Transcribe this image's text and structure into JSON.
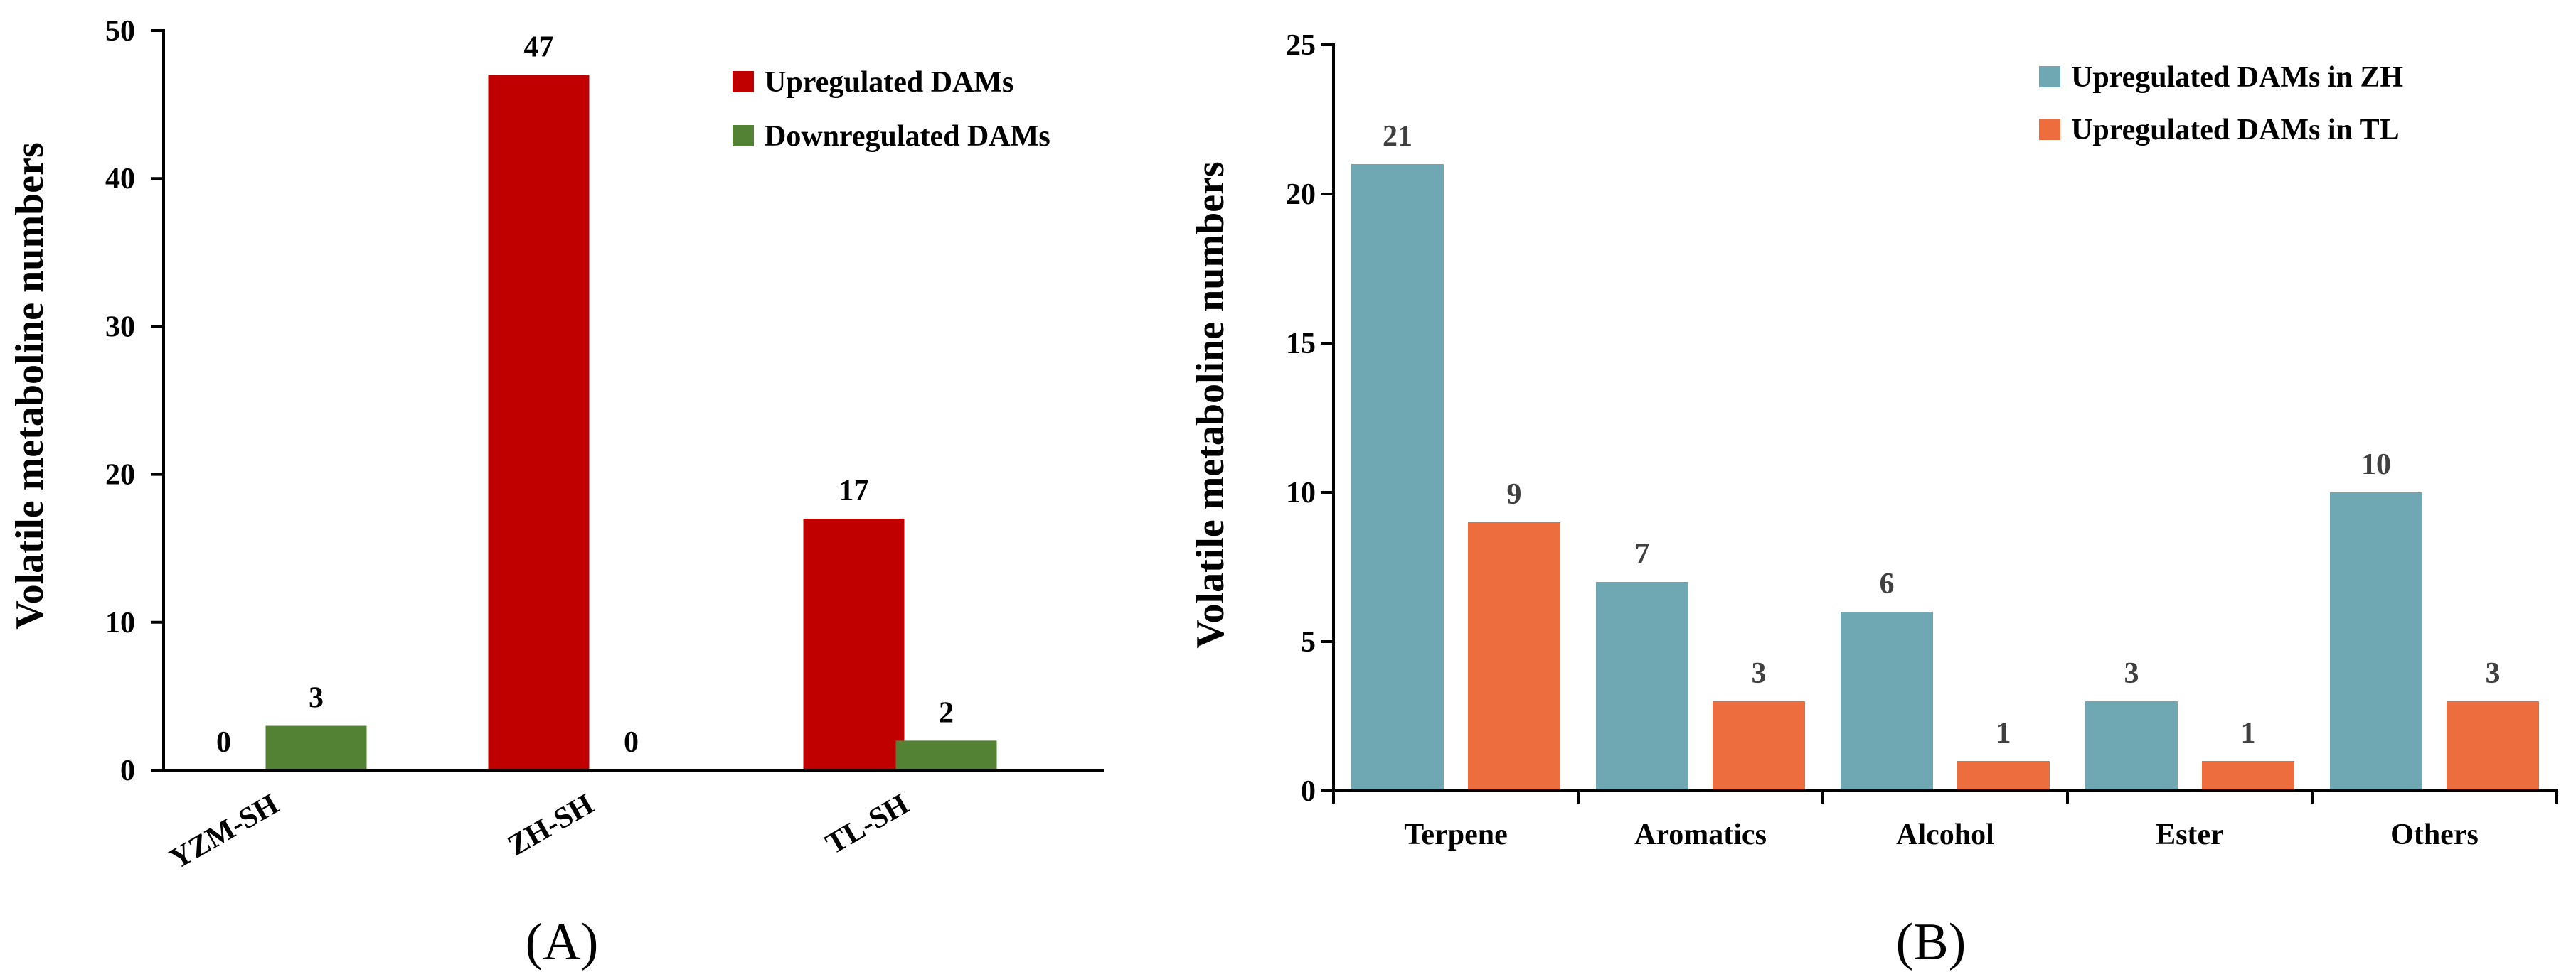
{
  "chart_data": [
    {
      "type": "bar",
      "panel_label": "(A)",
      "categories": [
        "YZM-SH",
        "ZH-SH",
        "TL-SH"
      ],
      "series": [
        {
          "name": "Upregulated DAMs",
          "color": "#c00000",
          "values": [
            0,
            47,
            17
          ],
          "labels": [
            "0",
            "47",
            "17"
          ]
        },
        {
          "name": "Downregulated DAMs",
          "color": "#548235",
          "values": [
            3,
            0,
            2
          ],
          "labels": [
            "3",
            "0",
            "2"
          ]
        }
      ],
      "title": "",
      "xlabel": "",
      "ylabel": "Volatile metaboline numbers",
      "ylim": [
        0,
        50
      ],
      "yticks": [
        0,
        10,
        20,
        30,
        40,
        50
      ],
      "ytick_labels": [
        "0",
        "10",
        "20",
        "30",
        "40",
        "50"
      ],
      "grid": false,
      "legend_position": "top-right",
      "label_color": "#000000",
      "xtick_rotation": -30
    },
    {
      "type": "bar",
      "panel_label": "(B)",
      "categories": [
        "Terpene",
        "Aromatics",
        "Alcohol",
        "Ester",
        "Others"
      ],
      "series": [
        {
          "name": "Upregulated DAMs in ZH",
          "color": "#6fa8b3",
          "values": [
            21,
            7,
            6,
            3,
            10
          ],
          "labels": [
            "21",
            "7",
            "6",
            "3",
            "10"
          ]
        },
        {
          "name": "Upregulated DAMs in TL",
          "color": "#ed6d3f",
          "values": [
            9,
            3,
            1,
            1,
            3
          ],
          "labels": [
            "9",
            "3",
            "1",
            "1",
            "3"
          ]
        }
      ],
      "title": "",
      "xlabel": "",
      "ylabel": "Volatile metaboline numbers",
      "ylim": [
        0,
        25
      ],
      "yticks": [
        0,
        5,
        10,
        15,
        20,
        25
      ],
      "ytick_labels": [
        "0",
        "5",
        "10",
        "15",
        "20",
        "25"
      ],
      "grid": false,
      "legend_position": "top-right",
      "label_color": "#404040",
      "xtick_rotation": 0
    }
  ]
}
